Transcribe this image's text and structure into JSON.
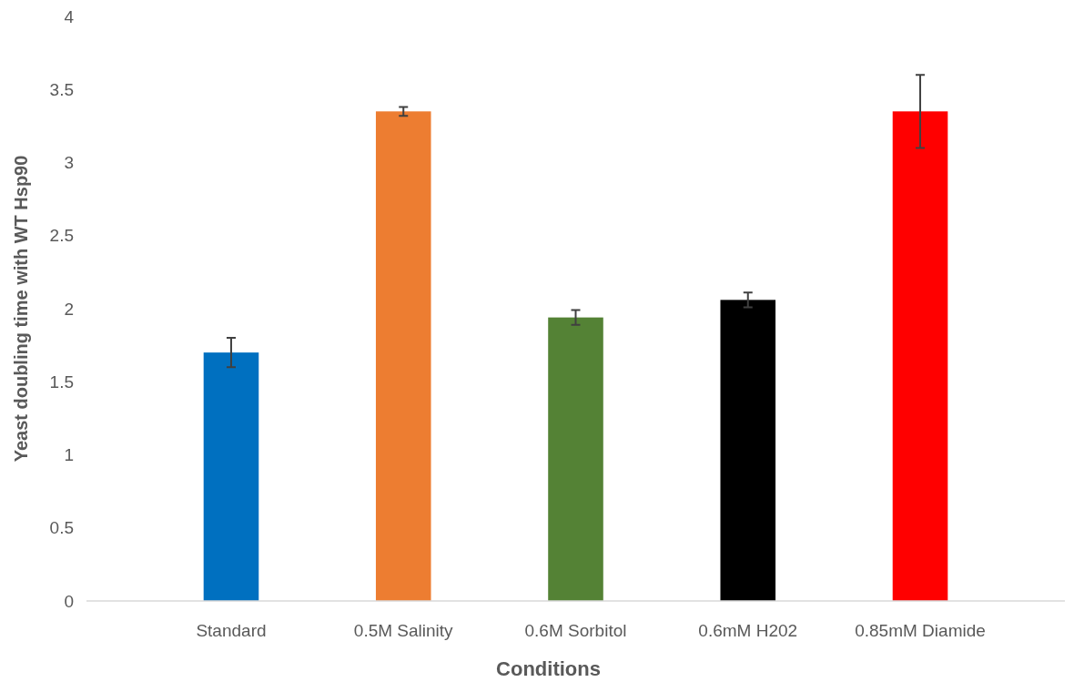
{
  "chart_data": {
    "type": "bar",
    "xlabel": "Conditions",
    "ylabel": "Yeast doubling time with WT Hsp90",
    "categories": [
      "Standard",
      "0.5M Salinity",
      "0.6M Sorbitol",
      "0.6mM H202",
      "0.85mM Diamide"
    ],
    "values": [
      1.7,
      3.35,
      1.94,
      2.06,
      3.35
    ],
    "colors": [
      "#0070c0",
      "#ed7d31",
      "#548235",
      "#000000",
      "#ff0000"
    ],
    "errors": [
      0.1,
      0.03,
      0.05,
      0.05,
      0.25
    ],
    "ylim": [
      0,
      4
    ],
    "yticks": [
      0,
      0.5,
      1,
      1.5,
      2,
      2.5,
      3,
      3.5,
      4
    ],
    "grid": false
  }
}
